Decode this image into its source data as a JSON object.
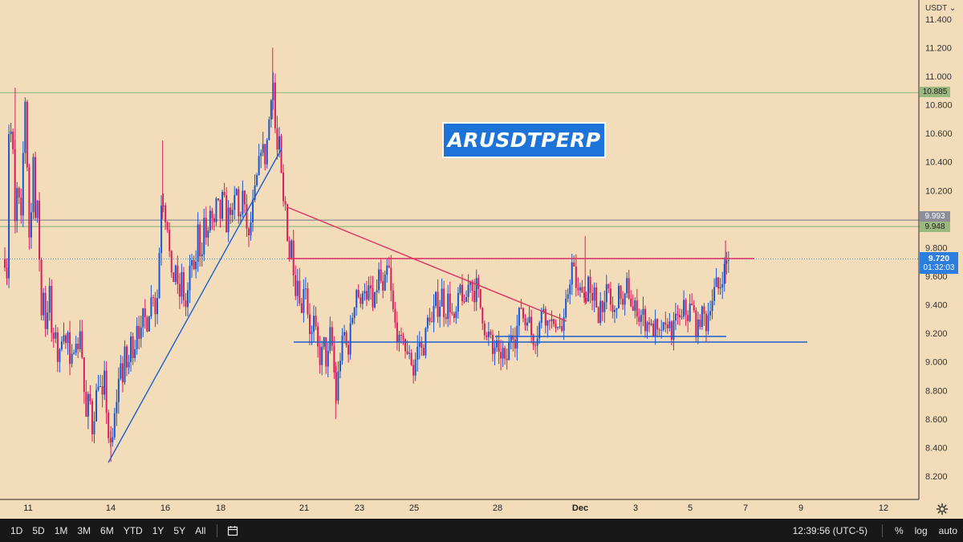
{
  "symbol": "ARUSDTPERP",
  "currency": "USDT",
  "chart_data": {
    "type": "candlestick",
    "y_axis": {
      "ticks": [
        "11.400",
        "11.200",
        "11.000",
        "10.800",
        "10.600",
        "10.400",
        "10.200",
        "9.800",
        "9.600",
        "9.400",
        "9.200",
        "9.000",
        "8.800",
        "8.600",
        "8.400",
        "8.200"
      ],
      "range": [
        8.03,
        11.47
      ]
    },
    "x_axis": {
      "ticks": [
        {
          "label": "11"
        },
        {
          "label": "14"
        },
        {
          "label": "16"
        },
        {
          "label": "18"
        },
        {
          "label": "21"
        },
        {
          "label": "23"
        },
        {
          "label": "25"
        },
        {
          "label": "28"
        },
        {
          "label": "Dec"
        },
        {
          "label": "3"
        },
        {
          "label": "5"
        },
        {
          "label": "7"
        },
        {
          "label": "9"
        },
        {
          "label": "12"
        }
      ]
    },
    "last_price": {
      "value": "9.720",
      "countdown": "01:32:03"
    },
    "price_levels": [
      {
        "value": "10.885",
        "color": "#9bb87f"
      },
      {
        "value": "9.993",
        "color": "#8d8d99"
      },
      {
        "value": "9.948",
        "color": "#9bb87f"
      }
    ],
    "price_path": [
      [
        0,
        9.72
      ],
      [
        2,
        9.4
      ],
      [
        5,
        10.6
      ],
      [
        7,
        10.9
      ],
      [
        9,
        10.0
      ],
      [
        11,
        10.75
      ],
      [
        13,
        9.85
      ],
      [
        16,
        10.3
      ],
      [
        20,
        9.9
      ],
      [
        24,
        10.65
      ],
      [
        26,
        10.9
      ],
      [
        28,
        10.4
      ],
      [
        30,
        9.7
      ],
      [
        32,
        10.3
      ],
      [
        34,
        9.85
      ],
      [
        36,
        10.6
      ],
      [
        38,
        9.95
      ],
      [
        40,
        10.4
      ],
      [
        42,
        9.6
      ],
      [
        44,
        9.8
      ],
      [
        46,
        9.3
      ],
      [
        48,
        9.6
      ],
      [
        50,
        9.2
      ],
      [
        53,
        9.35
      ],
      [
        56,
        9.5
      ],
      [
        60,
        9.05
      ],
      [
        64,
        9.25
      ],
      [
        67,
        8.95
      ],
      [
        70,
        9.1
      ],
      [
        73,
        9.3
      ],
      [
        76,
        9.1
      ],
      [
        79,
        9.2
      ],
      [
        82,
        8.9
      ],
      [
        86,
        9.1
      ],
      [
        89,
        9.2
      ],
      [
        92,
        9.05
      ],
      [
        95,
        9.3
      ],
      [
        98,
        8.9
      ],
      [
        102,
        8.6
      ],
      [
        106,
        8.8
      ],
      [
        110,
        8.5
      ],
      [
        114,
        8.75
      ],
      [
        118,
        8.9
      ],
      [
        122,
        8.7
      ],
      [
        126,
        8.95
      ],
      [
        129,
        8.4
      ],
      [
        131,
        8.55
      ],
      [
        133,
        8.35
      ],
      [
        136,
        8.5
      ],
      [
        139,
        8.7
      ],
      [
        142,
        8.8
      ],
      [
        145,
        9.05
      ],
      [
        148,
        8.85
      ],
      [
        151,
        9.1
      ],
      [
        154,
        8.9
      ],
      [
        158,
        9.15
      ],
      [
        162,
        9.05
      ],
      [
        166,
        9.3
      ],
      [
        170,
        9.15
      ],
      [
        174,
        9.35
      ],
      [
        178,
        9.25
      ],
      [
        182,
        9.4
      ],
      [
        186,
        9.5
      ],
      [
        190,
        9.3
      ],
      [
        194,
        9.8
      ],
      [
        196,
        10.1
      ],
      [
        198,
        10.25
      ],
      [
        200,
        10.0
      ],
      [
        203,
        10.05
      ],
      [
        206,
        9.8
      ],
      [
        210,
        9.5
      ],
      [
        214,
        9.7
      ],
      [
        218,
        9.4
      ],
      [
        222,
        9.6
      ],
      [
        226,
        9.35
      ],
      [
        230,
        9.5
      ],
      [
        234,
        9.75
      ],
      [
        238,
        9.55
      ],
      [
        242,
        9.95
      ],
      [
        246,
        9.7
      ],
      [
        250,
        10.0
      ],
      [
        254,
        9.8
      ],
      [
        258,
        10.1
      ],
      [
        262,
        9.9
      ],
      [
        266,
        10.15
      ],
      [
        270,
        10.0
      ],
      [
        274,
        10.2
      ],
      [
        278,
        9.95
      ],
      [
        282,
        10.1
      ],
      [
        286,
        10.0
      ],
      [
        290,
        10.25
      ],
      [
        294,
        9.95
      ],
      [
        298,
        10.2
      ],
      [
        302,
        10.0
      ],
      [
        306,
        9.85
      ],
      [
        310,
        10.05
      ],
      [
        314,
        10.2
      ],
      [
        318,
        10.35
      ],
      [
        322,
        10.55
      ],
      [
        326,
        10.4
      ],
      [
        330,
        10.6
      ],
      [
        333,
        10.8
      ],
      [
        336,
        11.05
      ],
      [
        338,
        10.75
      ],
      [
        341,
        10.45
      ],
      [
        344,
        10.55
      ],
      [
        346,
        10.35
      ],
      [
        348,
        10.2
      ],
      [
        350,
        10.05
      ],
      [
        352,
        10.1
      ],
      [
        354,
        9.95
      ],
      [
        356,
        9.7
      ],
      [
        360,
        9.85
      ],
      [
        364,
        9.5
      ],
      [
        368,
        9.6
      ],
      [
        372,
        9.3
      ],
      [
        376,
        9.65
      ],
      [
        380,
        9.35
      ],
      [
        384,
        9.15
      ],
      [
        388,
        9.3
      ],
      [
        392,
        9.1
      ],
      [
        396,
        9.0
      ],
      [
        400,
        9.15
      ],
      [
        404,
        8.95
      ],
      [
        408,
        9.2
      ],
      [
        412,
        9.05
      ],
      [
        415,
        8.7
      ],
      [
        418,
        8.9
      ],
      [
        422,
        9.1
      ],
      [
        426,
        9.2
      ],
      [
        430,
        9.05
      ],
      [
        434,
        9.25
      ],
      [
        438,
        9.4
      ],
      [
        442,
        9.55
      ],
      [
        446,
        9.35
      ],
      [
        450,
        9.6
      ],
      [
        454,
        9.4
      ],
      [
        458,
        9.55
      ],
      [
        462,
        9.35
      ],
      [
        466,
        9.5
      ],
      [
        470,
        9.65
      ],
      [
        474,
        9.45
      ],
      [
        478,
        9.6
      ],
      [
        481,
        9.7
      ],
      [
        484,
        9.5
      ],
      [
        488,
        9.3
      ],
      [
        492,
        9.2
      ],
      [
        496,
        9.1
      ],
      [
        500,
        9.2
      ],
      [
        504,
        9.0
      ],
      [
        508,
        9.1
      ],
      [
        512,
        8.9
      ],
      [
        516,
        9.05
      ],
      [
        520,
        9.15
      ],
      [
        524,
        9.05
      ],
      [
        528,
        9.2
      ],
      [
        532,
        9.35
      ],
      [
        536,
        9.25
      ],
      [
        540,
        9.45
      ],
      [
        544,
        9.35
      ],
      [
        548,
        9.5
      ],
      [
        552,
        9.3
      ],
      [
        556,
        9.45
      ],
      [
        560,
        9.35
      ],
      [
        564,
        9.25
      ],
      [
        568,
        9.4
      ],
      [
        572,
        9.55
      ],
      [
        576,
        9.35
      ],
      [
        580,
        9.5
      ],
      [
        584,
        9.6
      ],
      [
        588,
        9.45
      ],
      [
        592,
        9.55
      ],
      [
        596,
        9.4
      ],
      [
        600,
        9.3
      ],
      [
        604,
        9.15
      ],
      [
        608,
        9.2
      ],
      [
        612,
        9.05
      ],
      [
        616,
        9.15
      ],
      [
        620,
        9.0
      ],
      [
        624,
        9.1
      ],
      [
        628,
        8.95
      ],
      [
        632,
        9.1
      ],
      [
        636,
        9.25
      ],
      [
        640,
        9.15
      ],
      [
        644,
        9.3
      ],
      [
        648,
        9.4
      ],
      [
        652,
        9.25
      ],
      [
        656,
        9.35
      ],
      [
        660,
        9.2
      ],
      [
        664,
        9.15
      ],
      [
        668,
        9.2
      ],
      [
        672,
        9.3
      ],
      [
        676,
        9.4
      ],
      [
        680,
        9.25
      ],
      [
        684,
        9.35
      ],
      [
        688,
        9.2
      ],
      [
        692,
        9.3
      ],
      [
        696,
        9.25
      ],
      [
        700,
        9.2
      ],
      [
        704,
        9.4
      ],
      [
        708,
        9.55
      ],
      [
        712,
        9.7
      ],
      [
        716,
        9.55
      ],
      [
        720,
        9.45
      ],
      [
        724,
        9.55
      ],
      [
        728,
        9.4
      ],
      [
        732,
        9.6
      ],
      [
        736,
        9.35
      ],
      [
        740,
        9.5
      ],
      [
        744,
        9.3
      ],
      [
        748,
        9.45
      ],
      [
        752,
        9.35
      ],
      [
        756,
        9.55
      ],
      [
        760,
        9.4
      ],
      [
        764,
        9.3
      ],
      [
        768,
        9.45
      ],
      [
        772,
        9.5
      ],
      [
        776,
        9.35
      ],
      [
        780,
        9.55
      ],
      [
        784,
        9.45
      ],
      [
        788,
        9.35
      ],
      [
        792,
        9.4
      ],
      [
        796,
        9.3
      ],
      [
        800,
        9.35
      ],
      [
        804,
        9.25
      ],
      [
        808,
        9.3
      ],
      [
        812,
        9.2
      ],
      [
        816,
        9.25
      ],
      [
        820,
        9.15
      ],
      [
        824,
        9.25
      ],
      [
        828,
        9.2
      ],
      [
        832,
        9.3
      ],
      [
        836,
        9.2
      ],
      [
        840,
        9.25
      ],
      [
        844,
        9.35
      ],
      [
        848,
        9.25
      ],
      [
        852,
        9.4
      ],
      [
        856,
        9.3
      ],
      [
        860,
        9.4
      ],
      [
        864,
        9.35
      ],
      [
        868,
        9.2
      ],
      [
        872,
        9.3
      ],
      [
        876,
        9.35
      ],
      [
        880,
        9.25
      ],
      [
        884,
        9.4
      ],
      [
        888,
        9.45
      ],
      [
        892,
        9.55
      ],
      [
        896,
        9.5
      ],
      [
        900,
        9.6
      ],
      [
        904,
        9.68
      ],
      [
        907,
        9.74
      ],
      [
        910,
        9.72
      ]
    ],
    "price_x_range": [
      0,
      910
    ]
  },
  "bottom_bar": {
    "ranges": [
      "1D",
      "5D",
      "1M",
      "3M",
      "6M",
      "YTD",
      "1Y",
      "5Y",
      "All"
    ],
    "clock": "12:39:56 (UTC-5)",
    "percent": "%",
    "log": "log",
    "auto": "auto"
  },
  "colors": {
    "background": "#f3dcb9",
    "up": "#1c57c9",
    "down": "#d81e5b",
    "trend_blue": "#1a5fd1",
    "trend_red": "#e0325f",
    "price_blue": "#2b7de0"
  }
}
